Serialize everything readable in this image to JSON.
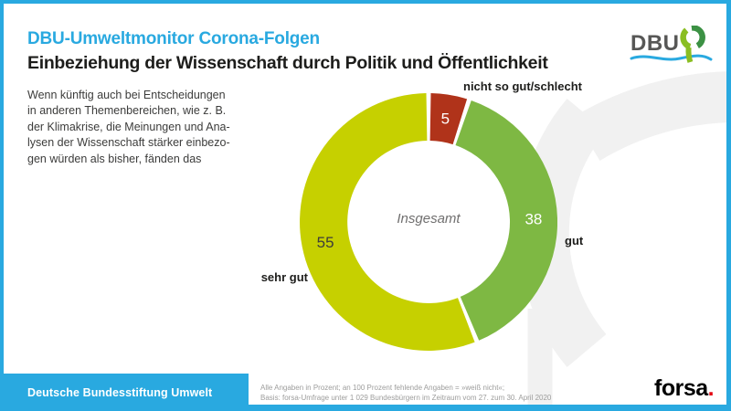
{
  "page": {
    "kicker": "DBU-Umweltmonitor Corona-Folgen",
    "title": "Einbeziehung der Wissenschaft durch Politik und Öffentlichkeit",
    "intro": "Wenn künftig auch bei Entscheidungen\nin anderen Themenbereichen, wie z. B.\nder Klimakrise, die Meinungen und Ana-\nlysen der Wissenschaft stärker einbezo-\ngen würden als bisher, fänden das"
  },
  "logo": {
    "text": "DBU"
  },
  "chart_data": {
    "type": "pie",
    "subtype": "donut",
    "title": "Einbeziehung der Wissenschaft durch Politik und Öffentlichkeit",
    "center_label": "Insgesamt",
    "unit": "percent",
    "start_angle_deg": 0,
    "direction": "clockwise",
    "categories": [
      "nicht so gut/schlecht",
      "gut",
      "sehr gut"
    ],
    "values": [
      5,
      38,
      55
    ],
    "colors": [
      "#b0331a",
      "#7eb843",
      "#c6d000"
    ],
    "value_label_colors": [
      "#ffffff",
      "#ffffff",
      "#3c3c3b"
    ],
    "note": "an 100 Prozent fehlende Angaben = »weiß nicht«"
  },
  "footer": {
    "org": "Deutsche Bundesstiftung Umwelt",
    "note": "Alle Angaben in Prozent; an 100 Prozent fehlende Angaben = »weiß nicht«;\nBasis: forsa-Umfrage unter 1 029 Bundesbürgern im Zeitraum vom 27. zum 30. April 2020",
    "brand": "forsa",
    "brand_dot": "."
  },
  "colors": {
    "accent_cyan": "#29a9e0",
    "lime": "#c6d000",
    "green": "#7eb843",
    "red": "#b0331a",
    "text_dark": "#1d1d1b",
    "logo_gray": "#575756",
    "note_gray": "#9d9d9c",
    "watermark_gray": "#f1f1f1",
    "forsa_red": "#e30613"
  }
}
